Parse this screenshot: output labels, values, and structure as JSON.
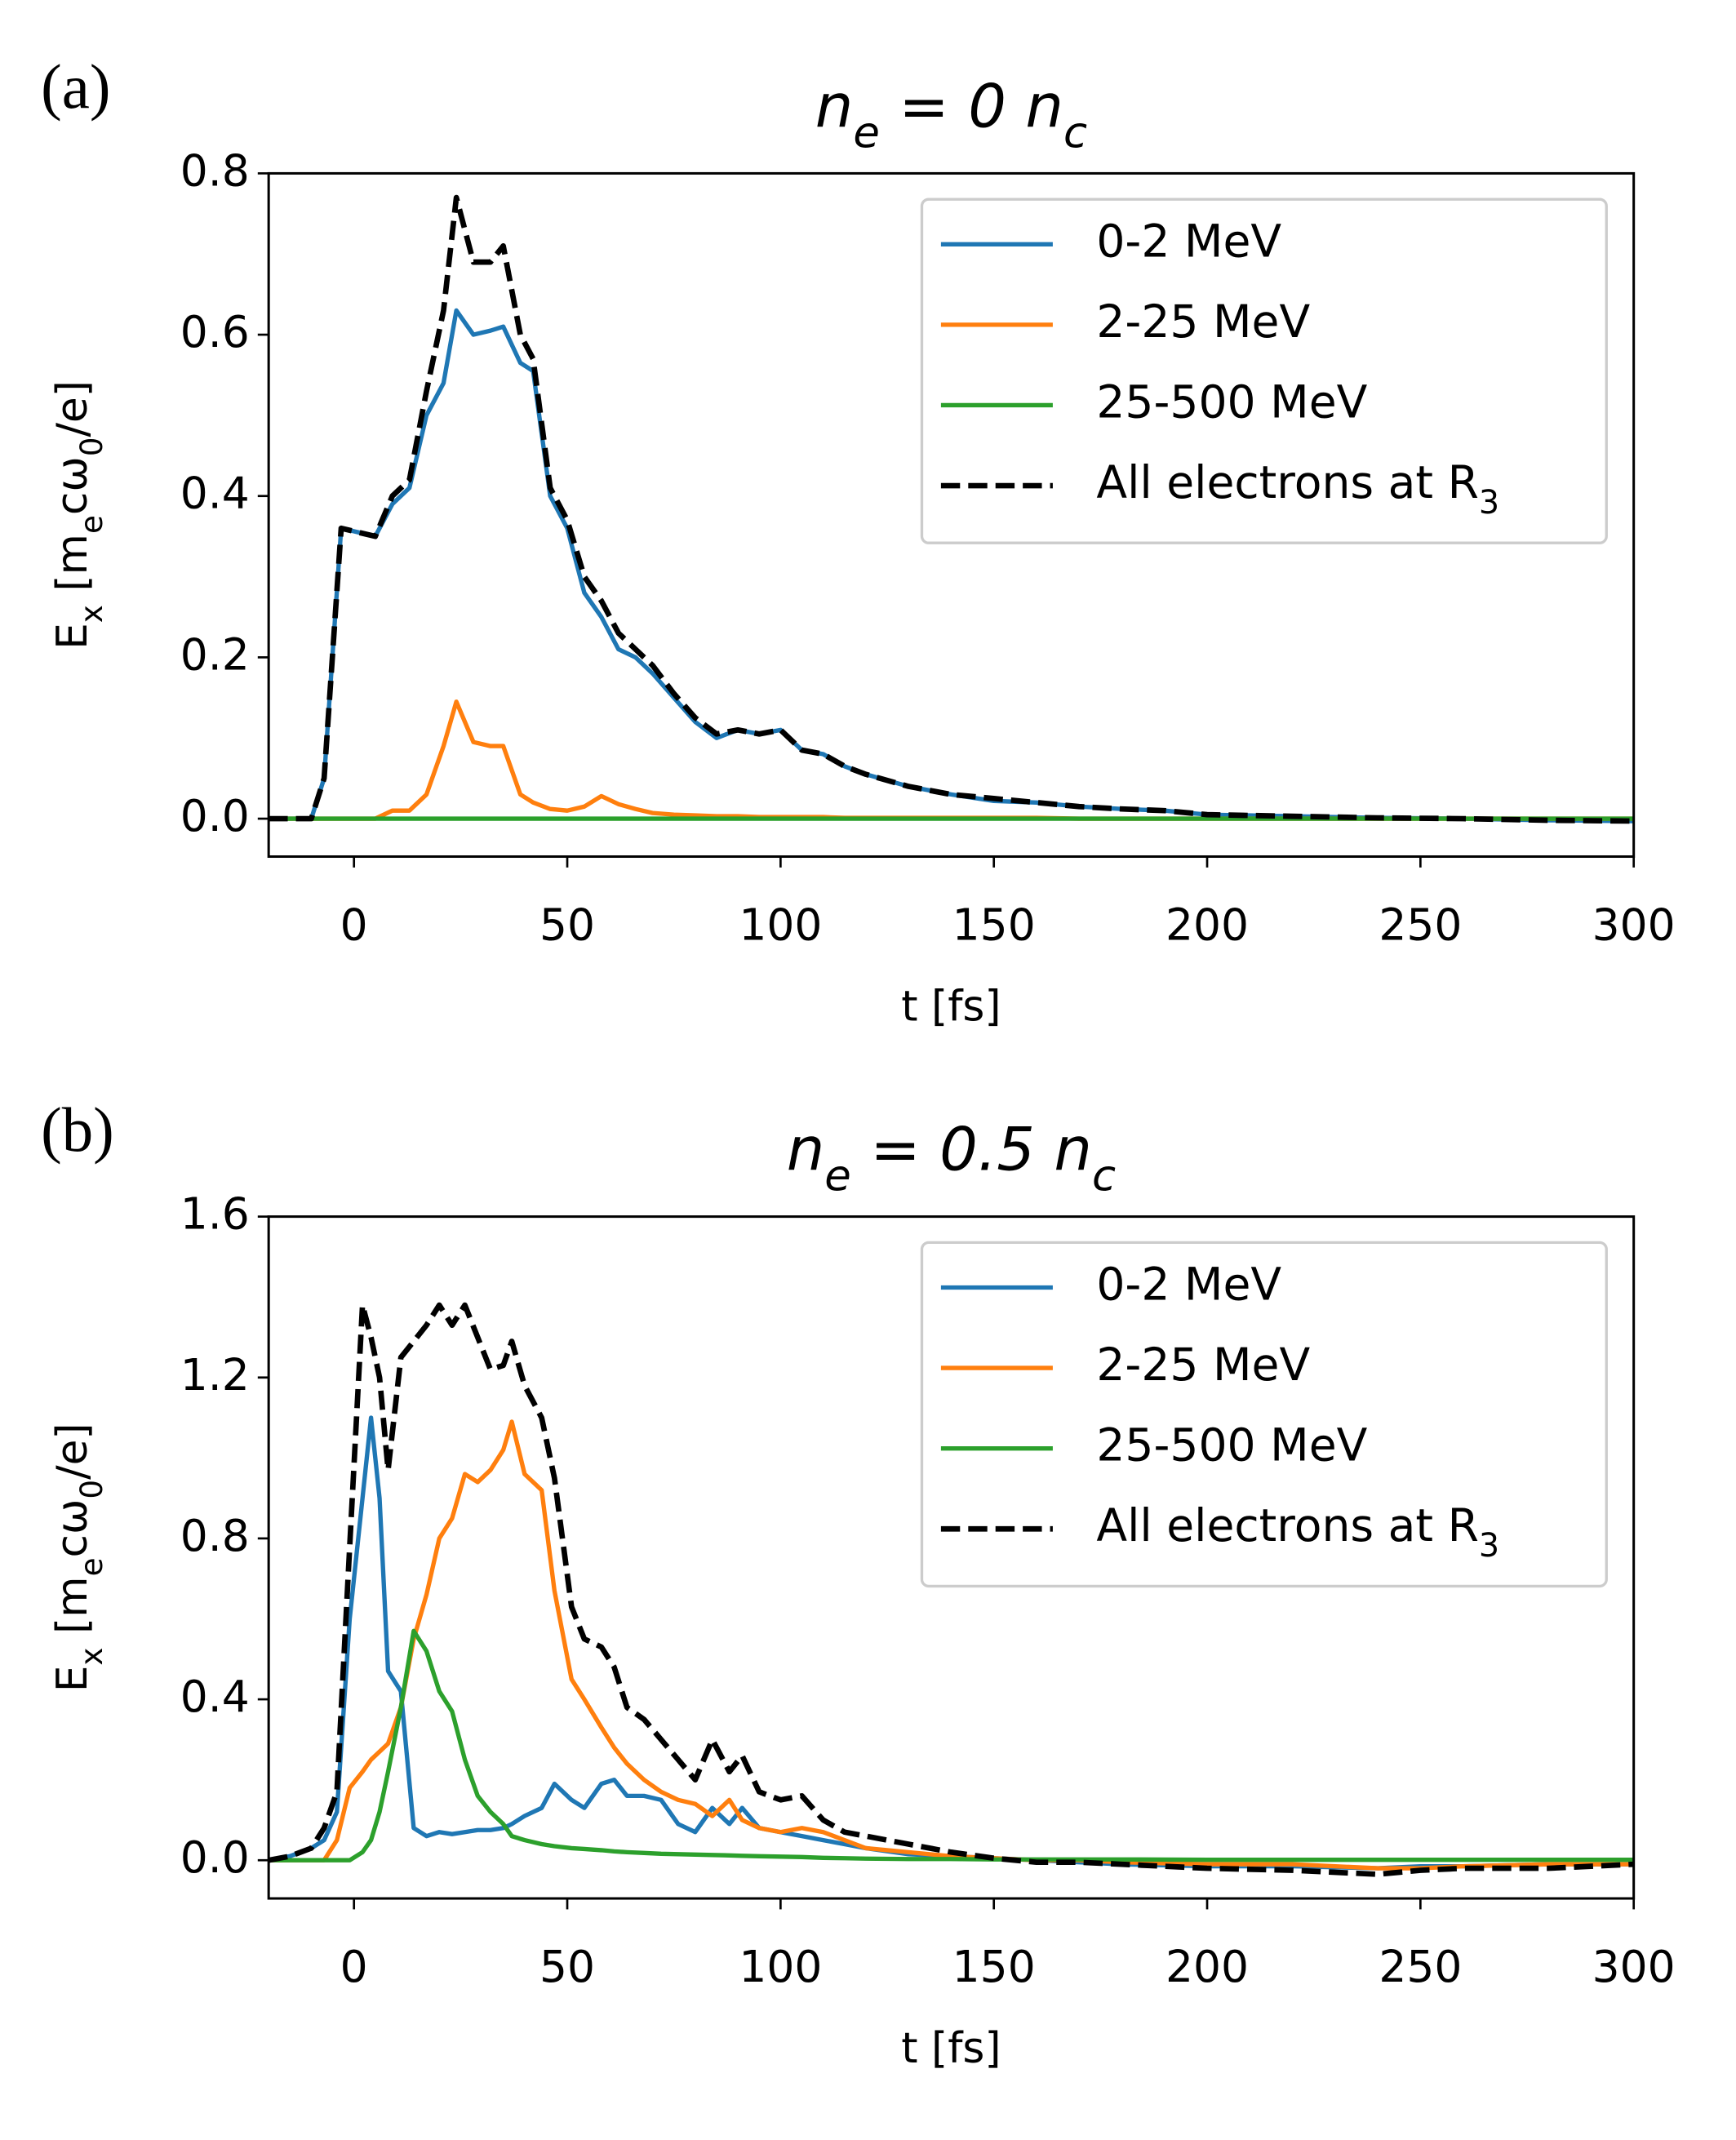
{
  "chart_data": [
    {
      "type": "line",
      "panel_label": "(a)",
      "title": "n_e = 0 n_c",
      "xlabel": "t [fs]",
      "ylabel": "E_x [m_ecω_0/e]",
      "legend": "upper right",
      "x": [
        -20,
        -15,
        -10,
        -7,
        -3,
        5,
        9,
        13,
        17,
        21,
        24,
        28,
        32,
        35,
        39,
        42,
        46,
        50,
        54,
        58,
        62,
        66,
        70,
        75,
        80,
        85,
        90,
        95,
        100,
        105,
        110,
        115,
        120,
        130,
        140,
        150,
        160,
        170,
        180,
        190,
        200,
        220,
        240,
        260,
        280,
        300
      ],
      "series": [
        {
          "name": "0-2 MeV",
          "color": "#1f77b4",
          "dashed": false,
          "values": [
            0,
            0,
            0,
            0.05,
            0.36,
            0.35,
            0.39,
            0.41,
            0.5,
            0.54,
            0.63,
            0.6,
            0.605,
            0.61,
            0.565,
            0.555,
            0.4,
            0.36,
            0.28,
            0.25,
            0.21,
            0.2,
            0.18,
            0.15,
            0.12,
            0.1,
            0.11,
            0.105,
            0.11,
            0.085,
            0.08,
            0.065,
            0.055,
            0.04,
            0.03,
            0.022,
            0.02,
            0.015,
            0.012,
            0.01,
            0.005,
            0.003,
            0.001,
            0,
            -0.002,
            -0.003
          ]
        },
        {
          "name": "2-25 MeV",
          "color": "#ff7f0e",
          "dashed": false,
          "values": [
            0,
            0,
            0,
            0,
            0,
            0,
            0.01,
            0.01,
            0.03,
            0.09,
            0.145,
            0.095,
            0.09,
            0.09,
            0.03,
            0.02,
            0.012,
            0.01,
            0.015,
            0.028,
            0.018,
            0.012,
            0.007,
            0.005,
            0.004,
            0.003,
            0.003,
            0.002,
            0.002,
            0.002,
            0.002,
            0.001,
            0.001,
            0.001,
            0.001,
            0.001,
            0.001,
            0,
            0,
            0,
            0,
            0,
            0,
            0,
            0,
            0
          ]
        },
        {
          "name": "25-500 MeV",
          "color": "#2ca02c",
          "dashed": false,
          "values": [
            0,
            0,
            0,
            0,
            0,
            0,
            0,
            0,
            0,
            0,
            0,
            0,
            0,
            0,
            0,
            0,
            0,
            0,
            0,
            0,
            0,
            0,
            0,
            0,
            0,
            0,
            0,
            0,
            0,
            0,
            0,
            0,
            0,
            0,
            0,
            0,
            0,
            0,
            0,
            0,
            0,
            0,
            0,
            0,
            0,
            0
          ]
        },
        {
          "name": "All electrons at R_3",
          "color": "#000000",
          "dashed": true,
          "values": [
            0,
            0,
            0,
            0.05,
            0.36,
            0.35,
            0.4,
            0.42,
            0.53,
            0.63,
            0.77,
            0.69,
            0.69,
            0.71,
            0.6,
            0.57,
            0.41,
            0.37,
            0.3,
            0.27,
            0.23,
            0.21,
            0.19,
            0.155,
            0.125,
            0.105,
            0.11,
            0.105,
            0.11,
            0.085,
            0.08,
            0.065,
            0.055,
            0.04,
            0.03,
            0.025,
            0.02,
            0.015,
            0.012,
            0.01,
            0.005,
            0.003,
            0.001,
            0,
            -0.002,
            -0.003
          ]
        }
      ],
      "xlim": [
        -20,
        300
      ],
      "xticks": [
        0,
        50,
        100,
        150,
        200,
        250,
        300
      ],
      "ylim": [
        -0.047,
        0.8
      ],
      "yticks": [
        {
          "value": 0,
          "label": "0.0"
        },
        0.2,
        0.4,
        0.6,
        0.8
      ]
    },
    {
      "type": "line",
      "panel_label": "(b)",
      "title": "n_e = 0.5 n_c",
      "xlabel": "t [fs]",
      "ylabel": "E_x [m_ecω_0/e]",
      "legend": "upper right",
      "x": [
        -20,
        -15,
        -10,
        -7,
        -4,
        -1,
        2,
        4,
        6,
        8,
        11,
        14,
        17,
        20,
        23,
        26,
        29,
        32,
        35,
        37,
        40,
        44,
        47,
        51,
        54,
        58,
        61,
        64,
        68,
        72,
        76,
        80,
        84,
        88,
        91,
        95,
        100,
        105,
        110,
        115,
        120,
        130,
        140,
        150,
        160,
        170,
        180,
        200,
        220,
        240,
        250,
        260,
        280,
        300
      ],
      "series": [
        {
          "name": "0-2 MeV",
          "color": "#1f77b4",
          "dashed": false,
          "values": [
            0,
            0.01,
            0.03,
            0.05,
            0.12,
            0.6,
            0.9,
            1.1,
            0.9,
            0.47,
            0.42,
            0.08,
            0.06,
            0.07,
            0.065,
            0.07,
            0.075,
            0.075,
            0.08,
            0.09,
            0.11,
            0.13,
            0.19,
            0.15,
            0.13,
            0.19,
            0.2,
            0.16,
            0.16,
            0.15,
            0.09,
            0.07,
            0.13,
            0.09,
            0.13,
            0.08,
            0.07,
            0.06,
            0.05,
            0.04,
            0.03,
            0.015,
            0.01,
            0.005,
            0,
            -0.005,
            -0.01,
            -0.015,
            -0.015,
            -0.02,
            -0.015,
            -0.015,
            -0.01,
            -0.01
          ]
        },
        {
          "name": "2-25 MeV",
          "color": "#ff7f0e",
          "dashed": false,
          "values": [
            0,
            0,
            0,
            0,
            0.05,
            0.18,
            0.22,
            0.25,
            0.27,
            0.29,
            0.38,
            0.55,
            0.66,
            0.8,
            0.85,
            0.96,
            0.94,
            0.97,
            1.02,
            1.09,
            0.96,
            0.92,
            0.67,
            0.45,
            0.4,
            0.33,
            0.28,
            0.24,
            0.2,
            0.17,
            0.15,
            0.14,
            0.11,
            0.15,
            0.1,
            0.08,
            0.07,
            0.08,
            0.07,
            0.05,
            0.03,
            0.02,
            0.01,
            0.005,
            0,
            0,
            -0.005,
            -0.01,
            -0.01,
            -0.02,
            -0.02,
            -0.015,
            -0.01,
            -0.01
          ]
        },
        {
          "name": "25-500 MeV",
          "color": "#2ca02c",
          "dashed": false,
          "values": [
            0,
            0,
            0,
            0,
            0,
            0,
            0.02,
            0.05,
            0.12,
            0.22,
            0.38,
            0.57,
            0.52,
            0.42,
            0.37,
            0.25,
            0.16,
            0.12,
            0.09,
            0.06,
            0.05,
            0.04,
            0.035,
            0.03,
            0.028,
            0.025,
            0.022,
            0.02,
            0.018,
            0.016,
            0.015,
            0.014,
            0.013,
            0.012,
            0.011,
            0.01,
            0.009,
            0.008,
            0.006,
            0.005,
            0.004,
            0.003,
            0.003,
            0.002,
            0.002,
            0.002,
            0.002,
            0.001,
            0.001,
            0.001,
            0.001,
            0.001,
            0.001,
            0.001
          ]
        },
        {
          "name": "All electrons at R_3",
          "color": "#000000",
          "dashed": true,
          "values": [
            0,
            0.01,
            0.03,
            0.08,
            0.17,
            0.78,
            1.38,
            1.3,
            1.2,
            0.97,
            1.25,
            1.29,
            1.33,
            1.38,
            1.33,
            1.38,
            1.3,
            1.22,
            1.23,
            1.29,
            1.18,
            1.1,
            0.95,
            0.63,
            0.55,
            0.53,
            0.48,
            0.38,
            0.35,
            0.3,
            0.25,
            0.2,
            0.3,
            0.22,
            0.26,
            0.17,
            0.15,
            0.16,
            0.1,
            0.07,
            0.06,
            0.04,
            0.02,
            0.005,
            -0.005,
            -0.005,
            -0.01,
            -0.02,
            -0.025,
            -0.035,
            -0.025,
            -0.02,
            -0.02,
            -0.01
          ]
        }
      ],
      "xlim": [
        -20,
        300
      ],
      "xticks": [
        0,
        50,
        100,
        150,
        200,
        250,
        300
      ],
      "ylim": [
        -0.095,
        1.6
      ],
      "yticks": [
        {
          "value": 0,
          "label": "0.0"
        },
        0.4,
        0.8,
        1.2,
        1.6
      ]
    }
  ]
}
